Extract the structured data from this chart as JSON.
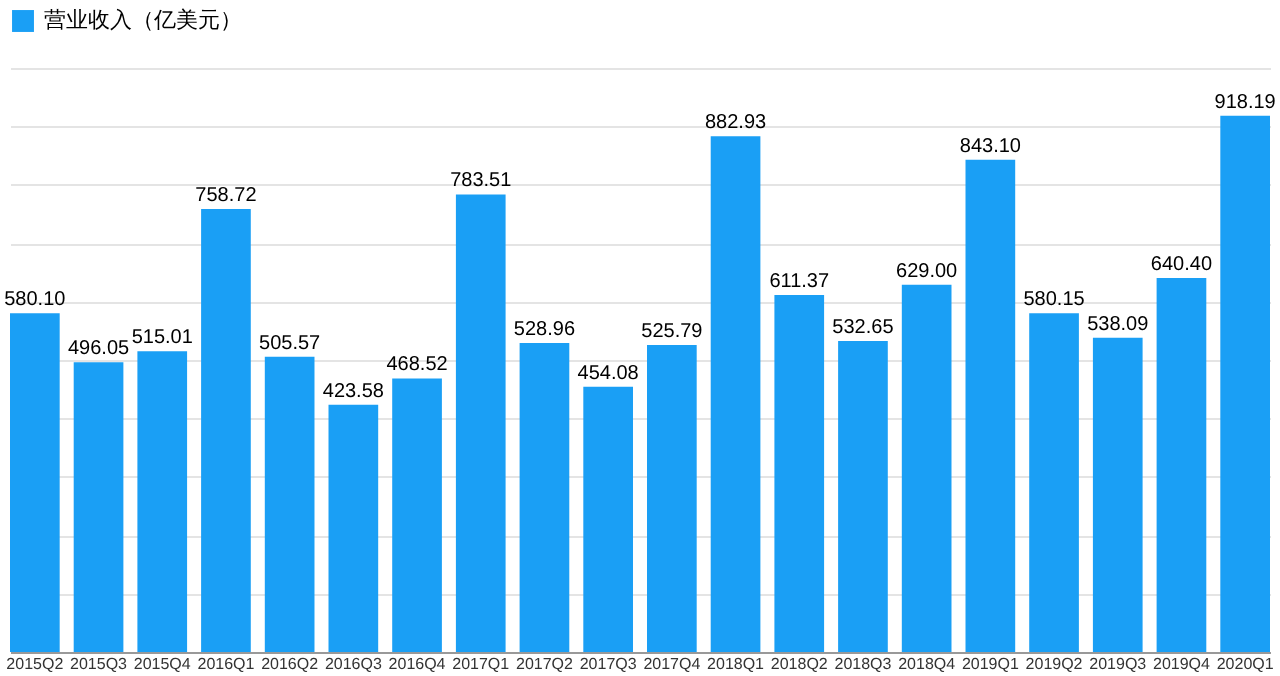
{
  "chart_data": {
    "type": "bar",
    "categories": [
      "2015Q2",
      "2015Q3",
      "2015Q4",
      "2016Q1",
      "2016Q2",
      "2016Q3",
      "2016Q4",
      "2017Q1",
      "2017Q2",
      "2017Q3",
      "2017Q4",
      "2018Q1",
      "2018Q2",
      "2018Q3",
      "2018Q4",
      "2019Q1",
      "2019Q2",
      "2019Q3",
      "2019Q4",
      "2020Q1"
    ],
    "series": [
      {
        "name": "营业收入（亿美元）",
        "color": "#1a9ff5",
        "values": [
          580.1,
          496.05,
          515.01,
          758.72,
          505.57,
          423.58,
          468.52,
          783.51,
          528.96,
          454.08,
          525.79,
          882.93,
          611.37,
          532.65,
          629.0,
          843.1,
          580.15,
          538.09,
          640.4,
          918.19
        ],
        "value_labels": [
          "580.10",
          "496.05",
          "515.01",
          "758.72",
          "505.57",
          "423.58",
          "468.52",
          "783.51",
          "528.96",
          "454.08",
          "525.79",
          "882.93",
          "611.37",
          "532.65",
          "629.00",
          "843.10",
          "580.15",
          "538.09",
          "640.40",
          "918.19"
        ]
      }
    ],
    "grid": "y",
    "legend": "top",
    "tick_labels": "x"
  }
}
